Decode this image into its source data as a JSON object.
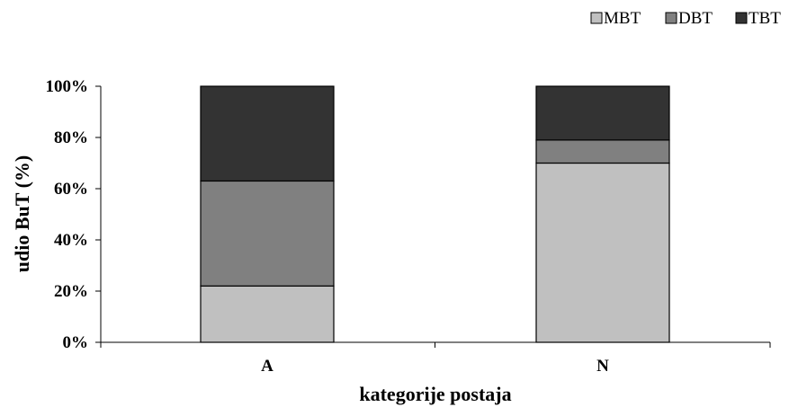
{
  "chart_data": {
    "type": "bar",
    "stacked": true,
    "percent": true,
    "categories": [
      "A",
      "N"
    ],
    "series": [
      {
        "name": "MBT",
        "values": [
          22,
          70
        ],
        "color": "#c0c0c0"
      },
      {
        "name": "DBT",
        "values": [
          41,
          9
        ],
        "color": "#808080"
      },
      {
        "name": "TBT",
        "values": [
          37,
          21
        ],
        "color": "#333333"
      }
    ],
    "xlabel": "kategorije postaja",
    "ylabel": "udio BuT (%)",
    "ylim": [
      0,
      100
    ],
    "yticks": [
      "0%",
      "20%",
      "40%",
      "60%",
      "80%",
      "100%"
    ],
    "grid": false,
    "legend": "top-right"
  }
}
